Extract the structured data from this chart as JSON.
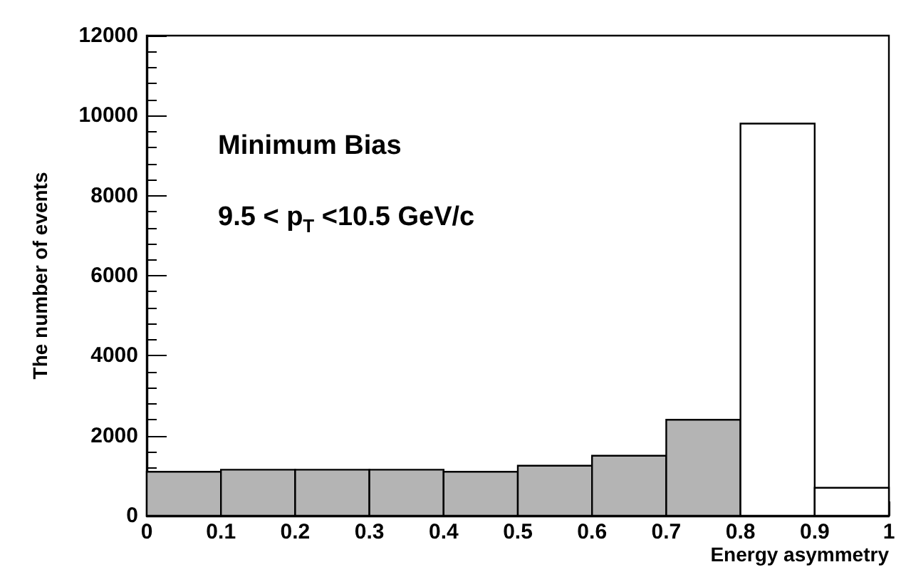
{
  "chart_data": {
    "type": "histogram",
    "xlabel": "Energy asymmetry",
    "ylabel": "The number of events",
    "bins": [
      0,
      0.1,
      0.2,
      0.3,
      0.4,
      0.5,
      0.6,
      0.7,
      0.8,
      0.9,
      1
    ],
    "values": [
      1100,
      1150,
      1150,
      1150,
      1100,
      1250,
      1500,
      2400,
      9800,
      700
    ],
    "colors": [
      "#b4b4b4",
      "#b4b4b4",
      "#b4b4b4",
      "#b4b4b4",
      "#b4b4b4",
      "#b4b4b4",
      "#b4b4b4",
      "#b4b4b4",
      "#ffffff",
      "#ffffff"
    ],
    "xlim": [
      0,
      1
    ],
    "xticks": [
      0,
      0.1,
      0.2,
      0.3,
      0.4,
      0.5,
      0.6,
      0.7,
      0.8,
      0.9,
      1
    ],
    "ylim": [
      0,
      12000
    ],
    "yticks": [
      0,
      2000,
      4000,
      6000,
      8000,
      10000,
      12000
    ],
    "annotations": [
      "Minimum Bias",
      "9.5 < p$_{T}$ <10.5 GeV/c"
    ],
    "grid": false
  }
}
